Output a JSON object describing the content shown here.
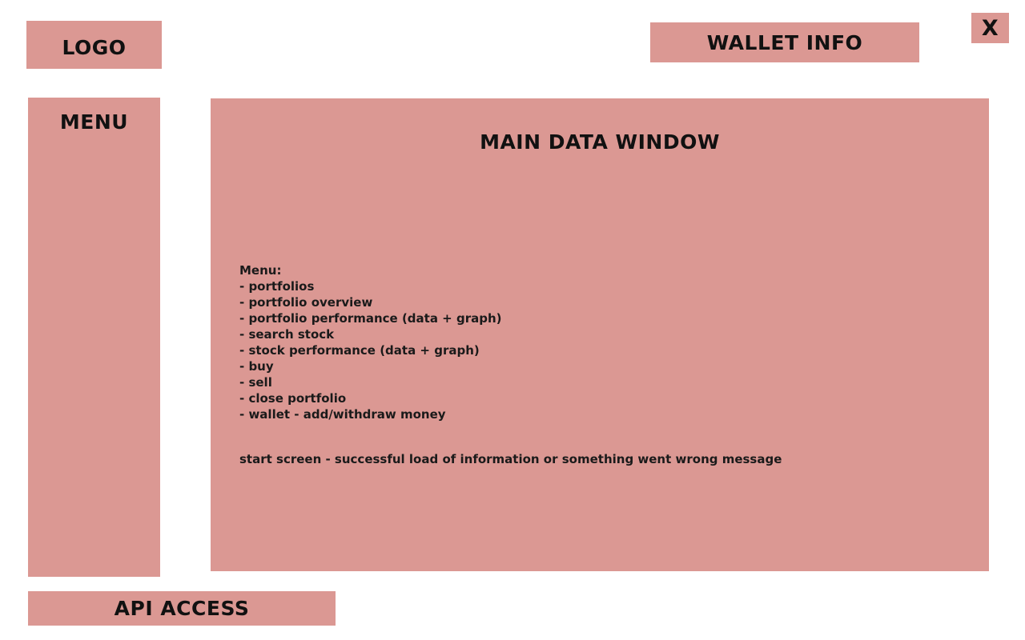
{
  "logo": {
    "label": "LOGO"
  },
  "wallet": {
    "label": "WALLET INFO"
  },
  "close": {
    "label": "X"
  },
  "menu": {
    "label": "MENU"
  },
  "main": {
    "title": "MAIN DATA WINDOW",
    "notes_heading": "Menu:",
    "notes": [
      "- portfolios",
      "- portfolio overview",
      "- portfolio performance (data + graph)",
      "- search stock",
      "- stock performance (data + graph)",
      "- buy",
      "- sell",
      "- close portfolio",
      "- wallet - add/withdraw money"
    ],
    "start_screen": "start screen - successful load of information or something went wrong message"
  },
  "api": {
    "label": "API ACCESS"
  },
  "colors": {
    "box_fill": "#db9893",
    "background": "#ffffff",
    "text": "#111111"
  }
}
